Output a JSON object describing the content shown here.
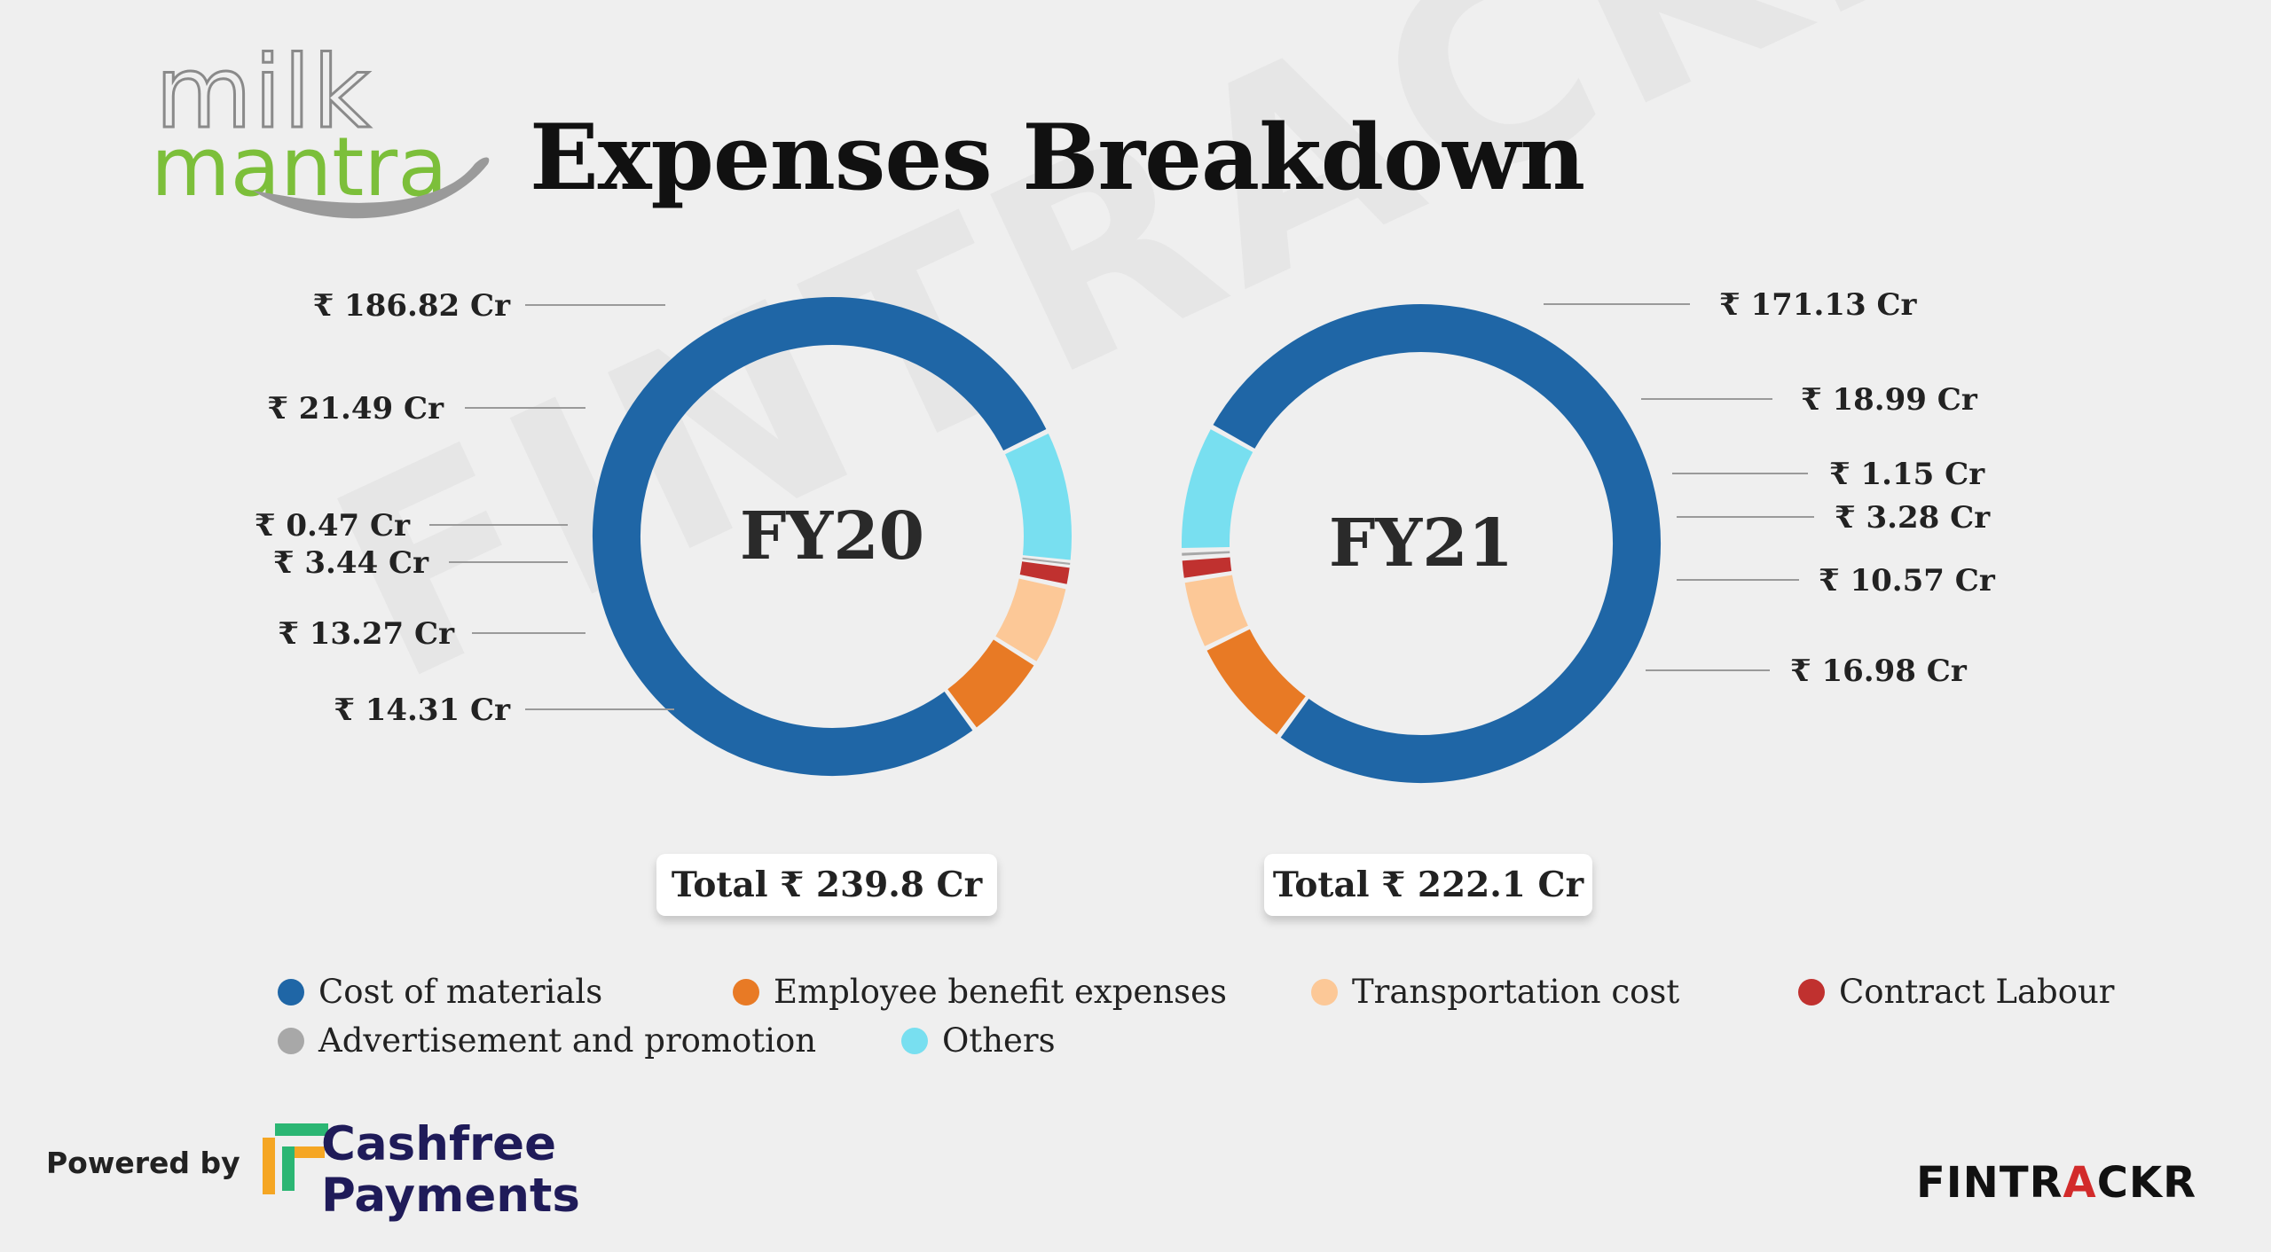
{
  "brand": {
    "logo_top": "milk",
    "logo_bottom": "mantra"
  },
  "title": "Expenses Breakdown",
  "watermark": "FINTRACKR",
  "colors": {
    "Cost of materials": "#1f66a6",
    "Employee benefit expenses": "#e87a25",
    "Transportation cost": "#fcc897",
    "Contract Labour": "#c0312f",
    "Advertisement and promotion": "#a8a8a8",
    "Others": "#78dff0"
  },
  "chart_data": [
    {
      "type": "pie",
      "center_label": "FY20",
      "total": "Total ₹ 239.8 Cr",
      "slices": [
        {
          "name": "Cost of materials",
          "value": 186.82,
          "label": "₹ 186.82 Cr"
        },
        {
          "name": "Others",
          "value": 21.49,
          "label": "₹ 21.49 Cr"
        },
        {
          "name": "Advertisement and promotion",
          "value": 0.47,
          "label": "₹ 0.47 Cr"
        },
        {
          "name": "Contract Labour",
          "value": 3.44,
          "label": "₹ 3.44 Cr"
        },
        {
          "name": "Transportation cost",
          "value": 13.27,
          "label": "₹ 13.27 Cr"
        },
        {
          "name": "Employee benefit expenses",
          "value": 14.31,
          "label": "₹ 14.31 Cr"
        }
      ]
    },
    {
      "type": "pie",
      "center_label": "FY21",
      "total": "Total ₹ 222.1 Cr",
      "slices": [
        {
          "name": "Cost of materials",
          "value": 171.13,
          "label": "₹ 171.13 Cr"
        },
        {
          "name": "Others",
          "value": 18.99,
          "label": "₹ 18.99 Cr"
        },
        {
          "name": "Advertisement and promotion",
          "value": 1.15,
          "label": "₹ 1.15 Cr"
        },
        {
          "name": "Contract Labour",
          "value": 3.28,
          "label": "₹ 3.28 Cr"
        },
        {
          "name": "Transportation cost",
          "value": 10.57,
          "label": "₹ 10.57 Cr"
        },
        {
          "name": "Employee benefit expenses",
          "value": 16.98,
          "label": "₹ 16.98 Cr"
        }
      ]
    }
  ],
  "legend": [
    "Cost of materials",
    "Employee benefit expenses",
    "Transportation cost",
    "Contract Labour",
    "Advertisement and promotion",
    "Others"
  ],
  "footer": {
    "powered_by": "Powered by",
    "sponsor_line1": "Cashfree",
    "sponsor_line2": "Payments",
    "brand_part1": "FINTR",
    "brand_part2": "A",
    "brand_part3": "CKR"
  }
}
